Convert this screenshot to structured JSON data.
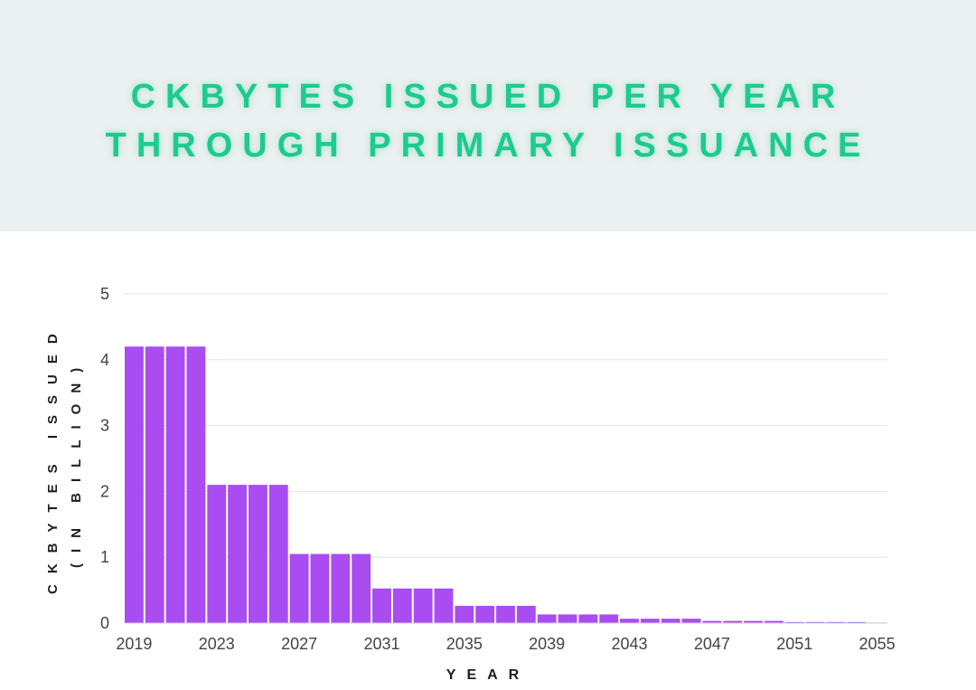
{
  "header": {
    "title_line1": "CKBYTES ISSUED PER YEAR",
    "title_line2": "THROUGH PRIMARY ISSUANCE"
  },
  "colors": {
    "bar": "#a94cf2",
    "title": "#1dcb8e",
    "header_bg": "#ebf0f0",
    "grid": "#e3e3e3"
  },
  "chart_data": {
    "type": "bar",
    "title": "CKBYTES ISSUED PER YEAR THROUGH PRIMARY ISSUANCE",
    "xlabel": "YEAR",
    "ylabel_line1": "CKBYTES ISSUED",
    "ylabel_line2": "(IN BILLION)",
    "categories": [
      "2019",
      "2020",
      "2021",
      "2022",
      "2023",
      "2024",
      "2025",
      "2026",
      "2027",
      "2028",
      "2029",
      "2030",
      "2031",
      "2032",
      "2033",
      "2034",
      "2035",
      "2036",
      "2037",
      "2038",
      "2039",
      "2040",
      "2041",
      "2042",
      "2043",
      "2044",
      "2045",
      "2046",
      "2047",
      "2048",
      "2049",
      "2050",
      "2051",
      "2052",
      "2053",
      "2054",
      "2055"
    ],
    "values": [
      4.2,
      4.2,
      4.2,
      4.2,
      2.1,
      2.1,
      2.1,
      2.1,
      1.05,
      1.05,
      1.05,
      1.05,
      0.525,
      0.525,
      0.525,
      0.525,
      0.2625,
      0.2625,
      0.2625,
      0.2625,
      0.131,
      0.131,
      0.131,
      0.131,
      0.066,
      0.066,
      0.066,
      0.066,
      0.033,
      0.033,
      0.033,
      0.033,
      0.016,
      0.016,
      0.016,
      0.016,
      0.008
    ],
    "x_tick_labels": [
      "2019",
      "2023",
      "2027",
      "2031",
      "2035",
      "2039",
      "2043",
      "2047",
      "2051",
      "2055"
    ],
    "y_ticks": [
      0,
      1,
      2,
      3,
      4,
      5
    ],
    "ylim": [
      0,
      5
    ],
    "grid": true,
    "legend": "none"
  }
}
